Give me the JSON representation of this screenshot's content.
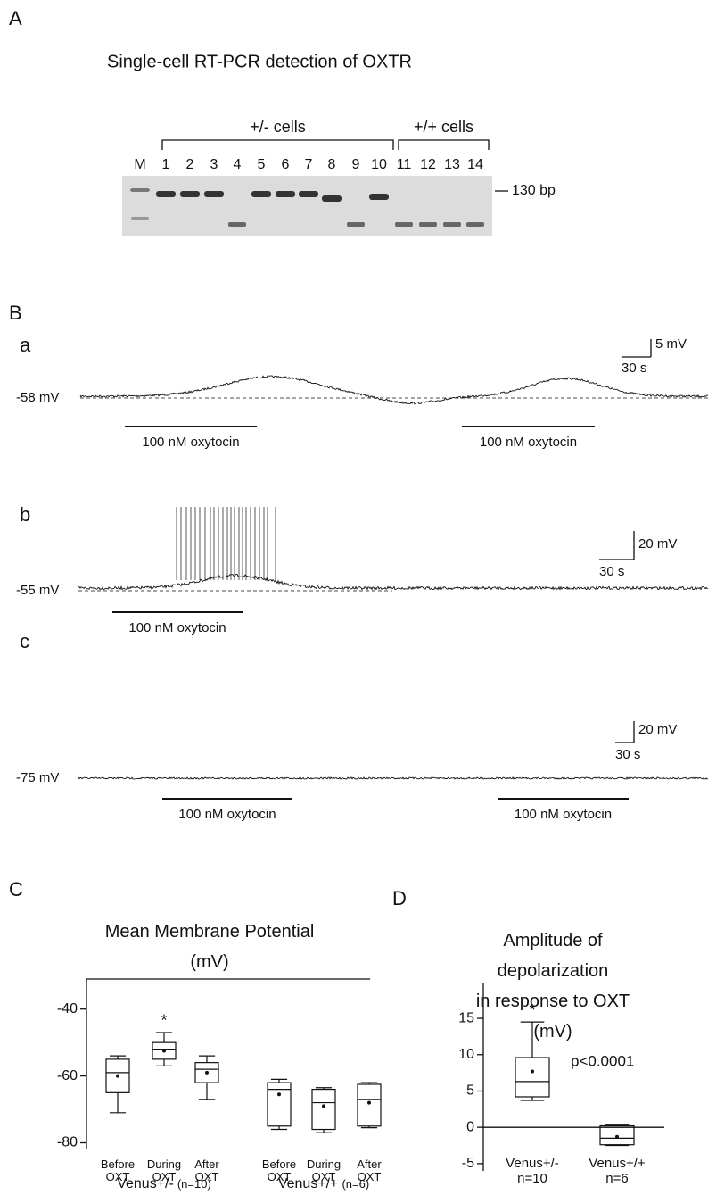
{
  "panel_a": {
    "label": "A",
    "title": "Single-cell RT-PCR detection of OXTR",
    "groups": [
      "+/- cells",
      "+/+ cells"
    ],
    "lanes": [
      "M",
      "1",
      "2",
      "3",
      "4",
      "5",
      "6",
      "7",
      "8",
      "9",
      "10",
      "11",
      "12",
      "13",
      "14"
    ],
    "size_marker": "130 bp"
  },
  "panel_b": {
    "label": "B",
    "traces": [
      {
        "label": "a",
        "baseline": "-58 mV",
        "scale_voltage": "5 mV",
        "scale_time": "30 s",
        "application": [
          "100 nM oxytocin",
          "100 nM oxytocin"
        ]
      },
      {
        "label": "b",
        "baseline": "-55 mV",
        "scale_voltage": "20 mV",
        "scale_time": "30 s",
        "application": [
          "100 nM oxytocin"
        ]
      },
      {
        "label": "c",
        "baseline": "-75 mV",
        "scale_voltage": "20 mV",
        "scale_time": "30 s",
        "application": [
          "100 nM oxytocin",
          "100 nM oxytocin"
        ]
      }
    ]
  },
  "chart_data": [
    {
      "type": "box",
      "panel": "C",
      "title": "Mean Membrane Potential\n(mV)",
      "categories": [
        "Before\nOXT",
        "During\nOXT",
        "After\nOXT",
        "Before\nOXT",
        "During\nOXT",
        "After\nOXT"
      ],
      "groups": [
        {
          "name": "Venus+/-",
          "n": "(n=10)"
        },
        {
          "name": "Venus+/+",
          "n": "(n=6)"
        }
      ],
      "min": [
        -71,
        -57,
        -67,
        -76,
        -77,
        -75.5
      ],
      "q1": [
        -65,
        -55,
        -62,
        -75,
        -76,
        -75
      ],
      "median": [
        -59,
        -52,
        -58,
        -64,
        -68,
        -67
      ],
      "q3": [
        -55,
        -50,
        -56,
        -62,
        -64,
        -62.5
      ],
      "max": [
        -54,
        -47,
        -54,
        -61,
        -63.5,
        -62
      ],
      "mean": [
        -60,
        -52.5,
        -59,
        -65.5,
        -69,
        -68
      ],
      "annotation": "*",
      "ylim": [
        -82,
        -31
      ],
      "yticks": [
        -40,
        -60,
        -80
      ]
    },
    {
      "type": "box",
      "panel": "D",
      "title": "Amplitude of depolarization\nin response to OXT (mV)",
      "categories": [
        "Venus+/-\nn=10",
        "Venus+/+\nn=6"
      ],
      "min": [
        3.7,
        -2.5
      ],
      "q1": [
        4.2,
        -2.4
      ],
      "median": [
        6.3,
        -1.5
      ],
      "q3": [
        9.6,
        0.2
      ],
      "max": [
        14.5,
        0.3
      ],
      "mean": [
        7.7,
        -1.3
      ],
      "annotation": "*",
      "p_value": "p<0.0001",
      "ylim": [
        -6,
        19.8
      ],
      "yticks": [
        -5,
        0,
        5,
        10,
        15
      ]
    }
  ]
}
